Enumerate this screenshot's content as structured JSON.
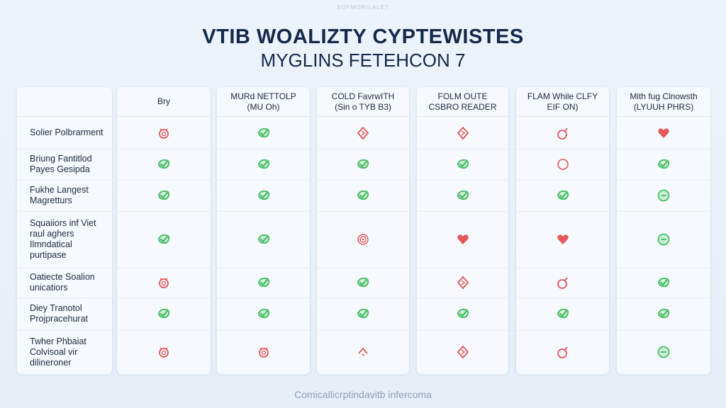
{
  "top_text": "SOFMORILALET",
  "title": "VTIB WOALIZTY CYPTEWISTES",
  "subtitle": "MYGLINS FETEHCON 7",
  "columns": [
    {
      "line1": "Bry",
      "line2": ""
    },
    {
      "line1": "MURd NETTOLP",
      "line2": "(MU Oh)"
    },
    {
      "line1": "COLD FavrwITH",
      "line2": "(Sin o TYB B3)"
    },
    {
      "line1": "FOLM OUTE",
      "line2": "CSBRO READER"
    },
    {
      "line1": "FLAM While CLFY",
      "line2": "EIF ON)"
    },
    {
      "line1": "Mith fug Clnowsth",
      "line2": "(LYUUH PHRS)"
    }
  ],
  "rows": [
    {
      "label": "Solier Polbrarment",
      "icons": [
        "alarm-red",
        "check-green",
        "diamond-red",
        "diamond-red",
        "bomb-red",
        "heart-red"
      ]
    },
    {
      "label": "Briung Fantitlod Payes Gesipda",
      "icons": [
        "check-green",
        "check-green",
        "check-green",
        "check-green",
        "circle-red",
        "check-green"
      ]
    },
    {
      "label": "Fukhe Langest Magretturs",
      "icons": [
        "check-green",
        "check-green",
        "check-green",
        "check-green",
        "check-green",
        "dot-green"
      ]
    },
    {
      "label": "Squaiiors inf Viet raul aghers Ilmndatical purtipase",
      "icons": [
        "check-green",
        "check-green",
        "target-red",
        "heart-red",
        "heart-red",
        "dot-green"
      ]
    },
    {
      "label": "Oatiecte Soalion unicatiors",
      "icons": [
        "alarm-red",
        "check-green",
        "check-green",
        "diamond-red",
        "bomb-red",
        "check-green"
      ]
    },
    {
      "label": "Diey Tranotol Projpracehurat",
      "icons": [
        "check-green",
        "check-green",
        "check-green",
        "check-green",
        "check-green",
        "check-green"
      ]
    },
    {
      "label": "Twher Phbaiat Colvisoal vir dilinerоner",
      "icons": [
        "alarm-red",
        "alarm-red",
        "caret-red",
        "diamond-red",
        "bomb-red",
        "dot-green"
      ]
    }
  ],
  "footer": "Comicallicrptindavitb infercoma",
  "colors": {
    "green": "#4cbf6a",
    "red": "#e4575a",
    "title": "#14284a"
  }
}
